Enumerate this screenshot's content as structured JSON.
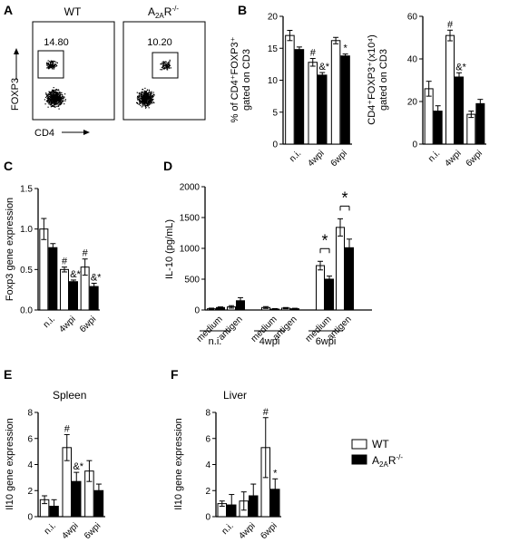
{
  "panels": {
    "A": {
      "label": "A",
      "flow": [
        {
          "title": "WT",
          "gate_value": "14.80"
        },
        {
          "title": "A2AR-/-",
          "title_main": "A",
          "title_sub": "2A",
          "title_tail": "R",
          "title_sup": "-/-",
          "gate_value": "10.20"
        }
      ],
      "y_axis": "FOXP3",
      "x_axis": "CD4"
    },
    "B": {
      "label": "B"
    },
    "C": {
      "label": "C"
    },
    "D": {
      "label": "D",
      "group_labels": [
        "n.i.",
        "4wpi",
        "6wpi"
      ]
    },
    "E": {
      "label": "E",
      "subtitle": "Spleen"
    },
    "F": {
      "label": "F",
      "subtitle": "Liver"
    }
  },
  "legend": {
    "wt": "WT",
    "ko_main": "A",
    "ko_sub": "2A",
    "ko_tail": "R",
    "ko_sup": "-/-"
  },
  "colors": {
    "wt": "#ffffff",
    "ko": "#000000",
    "stroke": "#000000"
  },
  "chart_data": [
    {
      "id": "B1",
      "type": "bar",
      "ylabel": "% of CD4+FOXP3+ gated on CD3",
      "categories": [
        "n.i.",
        "4wpi",
        "6wpi"
      ],
      "ylim": [
        0,
        20
      ],
      "yticks": [
        0,
        5,
        10,
        15,
        20
      ],
      "series": [
        {
          "name": "WT",
          "values": [
            17,
            12.8,
            16.2
          ],
          "errors": [
            0.8,
            0.6,
            0.5
          ]
        },
        {
          "name": "A2AR-/-",
          "values": [
            14.8,
            10.8,
            13.8
          ],
          "errors": [
            0.4,
            0.4,
            0.3
          ]
        }
      ],
      "annotations": [
        {
          "text": "#",
          "category": 1,
          "series": 0
        },
        {
          "text": "&*",
          "category": 1,
          "series": 1
        },
        {
          "text": "*",
          "category": 2,
          "series": 1
        }
      ]
    },
    {
      "id": "B2",
      "type": "bar",
      "ylabel": "CD4+FOXP3+(x10⁴) gated on CD3",
      "categories": [
        "n.i.",
        "4wpi",
        "6wpi"
      ],
      "ylim": [
        0,
        60
      ],
      "yticks": [
        0,
        20,
        40,
        60
      ],
      "series": [
        {
          "name": "WT",
          "values": [
            26,
            51,
            14
          ],
          "errors": [
            3.5,
            2.5,
            1.5
          ]
        },
        {
          "name": "A2AR-/-",
          "values": [
            15.5,
            31.5,
            19
          ],
          "errors": [
            2.5,
            2.0,
            2.0
          ]
        }
      ],
      "annotations": [
        {
          "text": "#",
          "category": 1,
          "series": 0
        },
        {
          "text": "&*",
          "category": 1,
          "series": 1
        }
      ]
    },
    {
      "id": "C",
      "type": "bar",
      "ylabel": "Foxp3 gene expression",
      "categories": [
        "n.i.",
        "4wpi",
        "6wpi"
      ],
      "ylim": [
        0,
        1.5
      ],
      "yticks": [
        0.0,
        0.5,
        1.0,
        1.5
      ],
      "ytick_labels": [
        "0.0",
        "0.5",
        "1.0",
        "1.5"
      ],
      "series": [
        {
          "name": "WT",
          "values": [
            1.0,
            0.5,
            0.53
          ],
          "errors": [
            0.13,
            0.03,
            0.1
          ]
        },
        {
          "name": "A2AR-/-",
          "values": [
            0.77,
            0.35,
            0.29
          ],
          "errors": [
            0.05,
            0.02,
            0.04
          ]
        }
      ],
      "annotations": [
        {
          "text": "#",
          "category": 1,
          "series": 0
        },
        {
          "text": "&*",
          "category": 1,
          "series": 1
        },
        {
          "text": "#",
          "category": 2,
          "series": 0
        },
        {
          "text": "&*",
          "category": 2,
          "series": 1
        }
      ]
    },
    {
      "id": "D",
      "type": "bar",
      "ylabel": "IL-10 (pg/mL)",
      "categories": [
        "medium",
        "antigen",
        "medium",
        "antigen",
        "medium",
        "antigen"
      ],
      "groups": [
        "n.i.",
        "4wpi",
        "6wpi"
      ],
      "ylim": [
        0,
        2000
      ],
      "yticks": [
        0,
        500,
        1000,
        1500,
        2000
      ],
      "series": [
        {
          "name": "WT",
          "values": [
            20,
            50,
            40,
            30,
            720,
            1340
          ],
          "errors": [
            10,
            20,
            15,
            10,
            70,
            140
          ]
        },
        {
          "name": "A2AR-/-",
          "values": [
            40,
            150,
            15,
            20,
            500,
            1010
          ],
          "errors": [
            10,
            50,
            8,
            8,
            50,
            140
          ]
        }
      ],
      "annotations": [
        {
          "text": "*",
          "category": 4,
          "bracket": true
        },
        {
          "text": "*",
          "category": 5,
          "bracket": true
        }
      ]
    },
    {
      "id": "E",
      "type": "bar",
      "title": "Spleen",
      "ylabel": "Il10 gene expression",
      "categories": [
        "n.i.",
        "4wpi",
        "6wpi"
      ],
      "ylim": [
        0,
        8
      ],
      "yticks": [
        0,
        2,
        4,
        6,
        8
      ],
      "series": [
        {
          "name": "WT",
          "values": [
            1.3,
            5.3,
            3.5
          ],
          "errors": [
            0.3,
            1.0,
            0.8
          ]
        },
        {
          "name": "A2AR-/-",
          "values": [
            0.8,
            2.7,
            2.0
          ],
          "errors": [
            0.5,
            0.7,
            0.5
          ]
        }
      ],
      "annotations": [
        {
          "text": "#",
          "category": 1,
          "series": 0
        },
        {
          "text": "&*",
          "category": 1,
          "series": 1
        }
      ]
    },
    {
      "id": "F",
      "type": "bar",
      "title": "Liver",
      "ylabel": "Il10 gene expression",
      "categories": [
        "n.i.",
        "4wpi",
        "6wpi"
      ],
      "ylim": [
        0,
        8
      ],
      "yticks": [
        0,
        2,
        4,
        6,
        8
      ],
      "series": [
        {
          "name": "WT",
          "values": [
            1.0,
            1.2,
            5.3
          ],
          "errors": [
            0.2,
            0.7,
            2.3
          ]
        },
        {
          "name": "A2AR-/-",
          "values": [
            0.9,
            1.6,
            2.1
          ],
          "errors": [
            0.8,
            0.9,
            0.8
          ]
        }
      ],
      "annotations": [
        {
          "text": "#",
          "category": 2,
          "series": 0
        },
        {
          "text": "*",
          "category": 2,
          "series": 1
        }
      ]
    }
  ]
}
